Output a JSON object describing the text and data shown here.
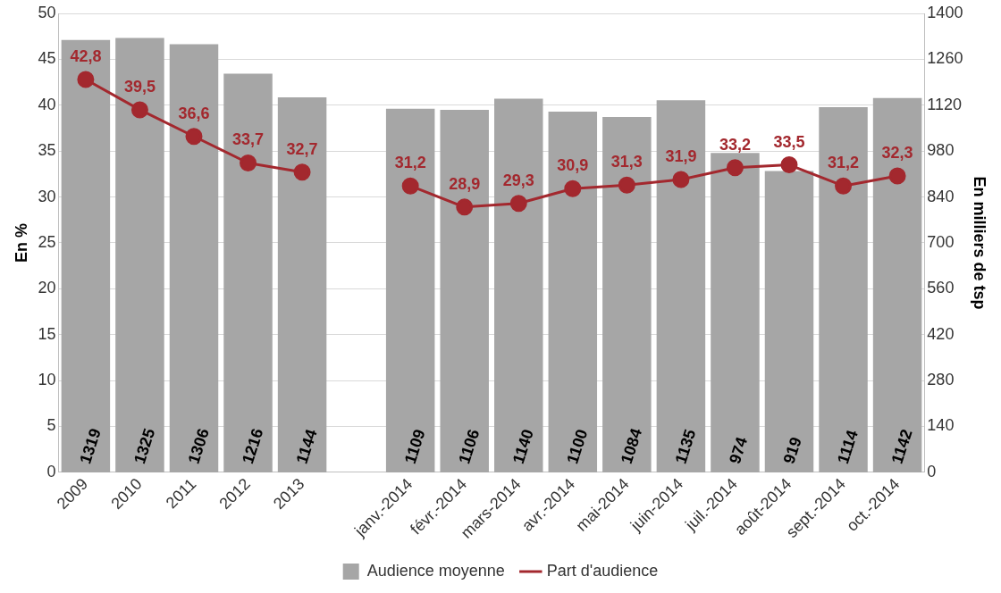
{
  "chart_data": {
    "type": "bar",
    "ylabel": "En %",
    "y2label": "En milliers de tsp",
    "categories": [
      "2009",
      "2010",
      "2011",
      "2012",
      "2013",
      null,
      "janv.-2014",
      "févr.-2014",
      "mars-2014",
      "avr.-2014",
      "mai-2014",
      "juin-2014",
      "juil.-2014",
      "août-2014",
      "sept.-2014",
      "oct.-2014"
    ],
    "series": [
      {
        "name": "Audience moyenne",
        "axis": "y2",
        "color": "#a6a6a6",
        "values": [
          1319,
          1325,
          1306,
          1216,
          1144,
          null,
          1109,
          1106,
          1140,
          1100,
          1084,
          1135,
          974,
          919,
          1114,
          1142
        ],
        "value_labels": [
          "1319",
          "1325",
          "1306",
          "1216",
          "1144",
          null,
          "1109",
          "1106",
          "1140",
          "1100",
          "1084",
          "1135",
          "974",
          "919",
          "1114",
          "1142"
        ]
      },
      {
        "name": "Part d'audience",
        "type": "line",
        "color": "#a3282e",
        "values": [
          42.8,
          39.5,
          36.6,
          33.7,
          32.7,
          null,
          31.2,
          28.9,
          29.3,
          30.9,
          31.3,
          31.9,
          33.2,
          33.5,
          31.2,
          32.3
        ],
        "value_labels": [
          "42,8",
          "39,5",
          "36,6",
          "33,7",
          "32,7",
          null,
          "31,2",
          "28,9",
          "29,3",
          "30,9",
          "31,3",
          "31,9",
          "33,2",
          "33,5",
          "31,2",
          "32,3"
        ]
      }
    ],
    "ylim": [
      0,
      50
    ],
    "yticks": [
      0,
      5,
      10,
      15,
      20,
      25,
      30,
      35,
      40,
      45,
      50
    ],
    "y2lim": [
      0,
      1400
    ],
    "y2ticks": [
      0,
      140,
      280,
      420,
      560,
      700,
      840,
      980,
      1120,
      1260,
      1400
    ],
    "grid": "y",
    "legend": "bottom",
    "marker": "circle"
  }
}
